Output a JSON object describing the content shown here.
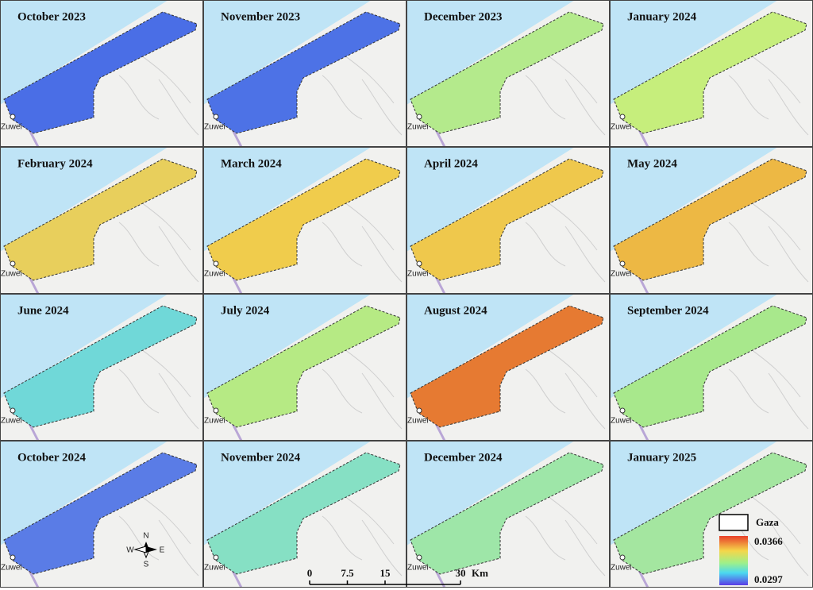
{
  "panels": [
    {
      "title": "October 2023",
      "color": "#4a6ee6"
    },
    {
      "title": "November 2023",
      "color": "#4d72e6"
    },
    {
      "title": "December 2023",
      "color": "#b4ea8c"
    },
    {
      "title": "January 2024",
      "color": "#c6ee7c"
    },
    {
      "title": "February 2024",
      "color": "#e8cf5c"
    },
    {
      "title": "March 2024",
      "color": "#f0cc4c"
    },
    {
      "title": "April 2024",
      "color": "#efc84c"
    },
    {
      "title": "May 2024",
      "color": "#edb844"
    },
    {
      "title": "June 2024",
      "color": "#70d8d8"
    },
    {
      "title": "July 2024",
      "color": "#b6ea84"
    },
    {
      "title": "August 2024",
      "color": "#e67a32"
    },
    {
      "title": "September 2024",
      "color": "#a8e88c"
    },
    {
      "title": "October 2024",
      "color": "#5a7ce6"
    },
    {
      "title": "November 2024",
      "color": "#86e0c4"
    },
    {
      "title": "December 2024",
      "color": "#9ee6a8"
    },
    {
      "title": "January 2025",
      "color": "#a4e6a0"
    }
  ],
  "town_label": "Zuwei",
  "compass": {
    "north": "N",
    "south": "S",
    "east": "E",
    "west": "W"
  },
  "scale_bar": {
    "ticks": [
      0,
      7.5,
      15,
      30
    ],
    "unit": "Km"
  },
  "legend": {
    "boundary": "Gaza",
    "max": 0.0366,
    "min": 0.0297,
    "max_color": "#e8402a",
    "min_color": "#5a3ce6"
  }
}
